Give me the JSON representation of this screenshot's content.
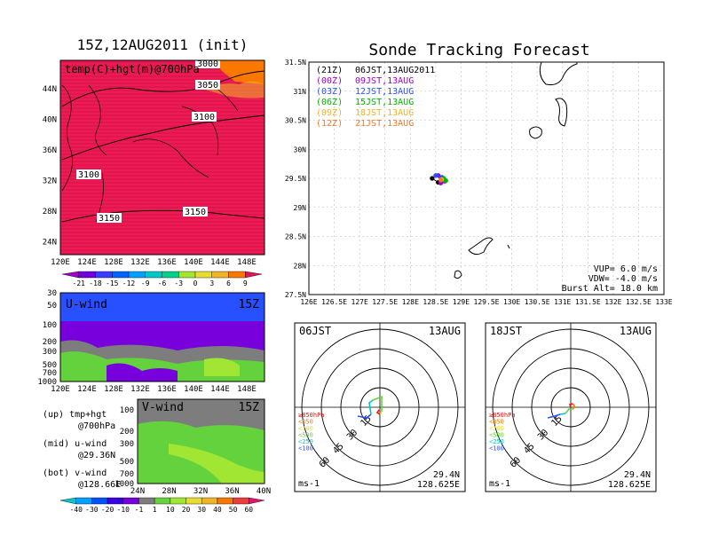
{
  "left_title": "15Z,12AUG2011 (init)",
  "right_title": "Sonde Tracking Forecast",
  "map_panel": {
    "label": "temp(C)+hgt(m)@700hPa",
    "contours": [
      "3000",
      "3050",
      "3100",
      "3100",
      "3150",
      "3150"
    ],
    "lat_ticks": [
      "44N",
      "40N",
      "36N",
      "32N",
      "28N",
      "24N"
    ],
    "lon_ticks": [
      "120E",
      "124E",
      "128E",
      "132E",
      "136E",
      "140E",
      "144E",
      "148E"
    ]
  },
  "temp_colorbar": {
    "labels": [
      "-21",
      "-18",
      "-15",
      "-12",
      "-9",
      "-6",
      "-3",
      "0",
      "3",
      "6",
      "9"
    ],
    "colors": [
      "#a000c8",
      "#6e00dc",
      "#3c3cff",
      "#0064ff",
      "#00a0ff",
      "#00c8c8",
      "#00d28c",
      "#a0e632",
      "#e6dc32",
      "#f0b428",
      "#fa7800",
      "#e61450"
    ]
  },
  "uwind_panel": {
    "label": "U-wind",
    "time": "15Z",
    "y_ticks": [
      "30",
      "50",
      "100",
      "200",
      "300",
      "500",
      "700",
      "1000"
    ],
    "x_ticks": [
      "120E",
      "124E",
      "128E",
      "132E",
      "136E",
      "140E",
      "144E",
      "148E"
    ]
  },
  "vwind_panel": {
    "label": "V-wind",
    "time": "15Z",
    "y_ticks": [
      "100",
      "200",
      "300",
      "500",
      "700",
      "1000"
    ],
    "x_ticks": [
      "24N",
      "28N",
      "32N",
      "36N",
      "40N"
    ]
  },
  "panel_legend": [
    {
      "key": "(up)",
      "text": "tmp+hgt",
      "sub": "@700hPa"
    },
    {
      "key": "(mid)",
      "text": "u-wind",
      "sub": "@29.36N"
    },
    {
      "key": "(bot)",
      "text": "v-wind",
      "sub": "@128.66E"
    }
  ],
  "wind_colorbar": {
    "labels": [
      "-40",
      "-30",
      "-20",
      "-10",
      "-1",
      "1",
      "10",
      "20",
      "30",
      "40",
      "50",
      "60"
    ],
    "colors": [
      "#00c8c8",
      "#00a0ff",
      "#0050ff",
      "#3c00e6",
      "#7800dc",
      "#7d7d7d",
      "#64d23c",
      "#a0e632",
      "#e6dc32",
      "#f0b428",
      "#fa7800",
      "#f03c3c",
      "#e6146e"
    ]
  },
  "track_map": {
    "lat_ticks": [
      "31.5N",
      "31N",
      "30.5N",
      "30N",
      "29.5N",
      "29N",
      "28.5N",
      "28N",
      "27.5N"
    ],
    "lon_ticks": [
      "126E",
      "126.5E",
      "127E",
      "127.5E",
      "128E",
      "128.5E",
      "129E",
      "129.5E",
      "130E",
      "130.5E",
      "131E",
      "131.5E",
      "132E",
      "132.5E",
      "133E"
    ],
    "legend": [
      {
        "code": "(21Z)",
        "time": "06JST,13AUG2011",
        "color": "#000000"
      },
      {
        "code": "(00Z)",
        "time": "09JST,13AUG",
        "color": "#a000c8"
      },
      {
        "code": "(03Z)",
        "time": "12JST,13AUG",
        "color": "#2850ff"
      },
      {
        "code": "(06Z)",
        "time": "15JST,13AUG",
        "color": "#00b400"
      },
      {
        "code": "(09Z)",
        "time": "18JST,13AUG",
        "color": "#f0b428"
      },
      {
        "code": "(12Z)",
        "time": "21JST,13AUG",
        "color": "#f07828"
      }
    ],
    "params": [
      "VUP= 6.0 m/s",
      "VDW= -4.0 m/s",
      "Burst Alt= 18.0 km"
    ]
  },
  "polar_left": {
    "time": "06JST",
    "date": "13AUG",
    "ring_labels": [
      "15",
      "30",
      "45",
      "60"
    ],
    "levels": [
      "≥850hPa",
      "<850",
      "<700",
      "<500",
      "<250",
      "<100"
    ],
    "level_colors": [
      "#e61414",
      "#fa7800",
      "#e6dc32",
      "#64d23c",
      "#00c8c8",
      "#2850ff"
    ],
    "unit": "ms-1",
    "lat": "29.4N",
    "lon": "128.625E"
  },
  "polar_right": {
    "time": "18JST",
    "date": "13AUG",
    "ring_labels": [
      "15",
      "30",
      "45",
      "60"
    ],
    "levels": [
      "≥850hPa",
      "<850",
      "<700",
      "<500",
      "<250",
      "<100"
    ],
    "level_colors": [
      "#e61414",
      "#fa7800",
      "#e6dc32",
      "#64d23c",
      "#00c8c8",
      "#2850ff"
    ],
    "unit": "ms-1",
    "lat": "29.4N",
    "lon": "128.625E"
  },
  "chart_data": [
    {
      "type": "heatmap",
      "title": "15Z,12AUG2011 (init)",
      "label": "temp(C)+hgt(m)@700hPa",
      "x_ticks": [
        "120E",
        "124E",
        "128E",
        "132E",
        "136E",
        "140E",
        "144E",
        "148E"
      ],
      "y_ticks": [
        "24N",
        "28N",
        "32N",
        "36N",
        "40N",
        "44N"
      ],
      "contour_levels": [
        3000,
        3050,
        3100,
        3150
      ]
    },
    {
      "type": "heatmap",
      "label": "U-wind",
      "x_ticks": [
        "120E",
        "124E",
        "128E",
        "132E",
        "136E",
        "140E",
        "144E",
        "148E"
      ],
      "y_ticks": [
        1000,
        700,
        500,
        300,
        200,
        100,
        50,
        30
      ]
    },
    {
      "type": "heatmap",
      "label": "V-wind",
      "x_ticks": [
        "24N",
        "28N",
        "32N",
        "36N",
        "40N"
      ],
      "y_ticks": [
        1000,
        700,
        500,
        300,
        200,
        100
      ]
    },
    {
      "type": "scatter",
      "title": "Sonde Tracking Forecast",
      "xlim": [
        126,
        133
      ],
      "ylim": [
        27.5,
        31.5
      ],
      "series": [
        {
          "name": "(21Z) 06JST,13AUG2011",
          "points": [
            [
              128.43,
              29.5
            ],
            [
              128.55,
              29.43
            ],
            [
              128.62,
              29.45
            ]
          ]
        },
        {
          "name": "(00Z) 09JST,13AUG",
          "points": [
            [
              128.55,
              29.55
            ],
            [
              128.6,
              29.42
            ],
            [
              128.68,
              29.45
            ]
          ]
        },
        {
          "name": "(03Z) 12JST,13AUG",
          "points": [
            [
              128.5,
              29.55
            ],
            [
              128.62,
              29.52
            ],
            [
              128.65,
              29.47
            ]
          ]
        },
        {
          "name": "(06Z) 15JST,13AUG",
          "points": [
            [
              128.66,
              29.5
            ],
            [
              128.7,
              29.46
            ]
          ]
        },
        {
          "name": "(09Z) 18JST,13AUG",
          "points": [
            [
              128.62,
              29.48
            ]
          ]
        },
        {
          "name": "(12Z) 21JST,13AUG",
          "points": [
            [
              128.6,
              29.47
            ]
          ]
        }
      ]
    }
  ]
}
